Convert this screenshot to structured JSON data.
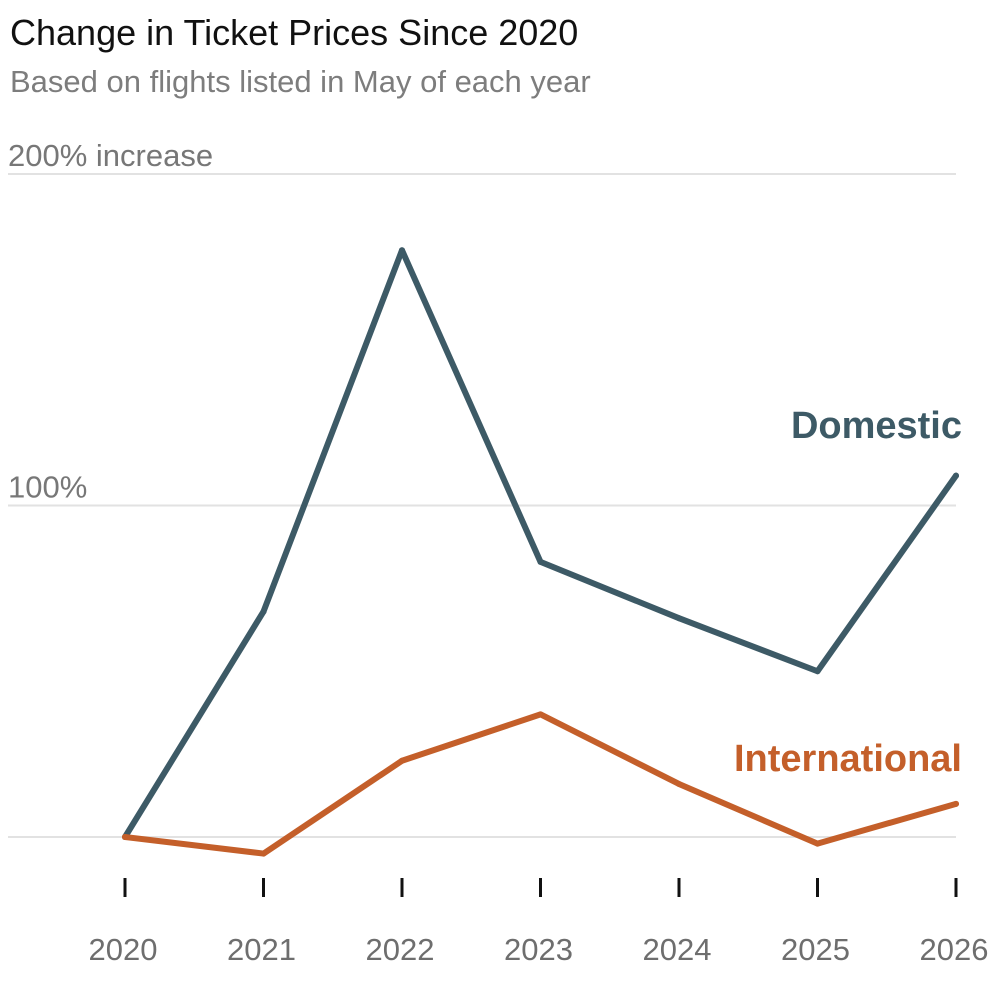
{
  "chart_data": {
    "type": "line",
    "title": "Change in Ticket Prices Since 2020",
    "subtitle": "Based on flights listed in May of each year",
    "x": [
      "2020",
      "2021",
      "2022",
      "2023",
      "2024",
      "2025",
      "2026"
    ],
    "y_tick_labels": [
      "200% increase",
      "100%"
    ],
    "ylim": [
      0,
      200
    ],
    "grid": true,
    "series": [
      {
        "name": "Domestic",
        "values": [
          0,
          68,
          177,
          83,
          66,
          50,
          109
        ],
        "color": "#3d5a66"
      },
      {
        "name": "International",
        "values": [
          0,
          -5,
          23,
          37,
          16,
          -2,
          10
        ],
        "color": "#c45f2a"
      }
    ]
  }
}
